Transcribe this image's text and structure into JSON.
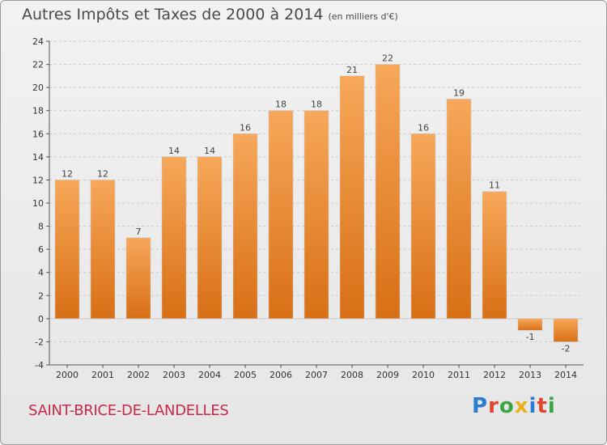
{
  "header": {
    "title": "Autres Impôts et Taxes de 2000 à 2014",
    "unit": "(en milliers d'€)"
  },
  "footer": {
    "commune": "SAINT-BRICE-DE-LANDELLES",
    "logo": "Proxiti"
  },
  "colors": {
    "bar_top": "#f7a85a",
    "bar_bottom": "#d86f15",
    "commune": "#c8284a",
    "logo_letters": [
      "#2a7dd1",
      "#e0462e",
      "#3aa541",
      "#e8b21c",
      "#2a7dd1",
      "#e0462e",
      "#3aa541"
    ]
  },
  "chart_data": {
    "type": "bar",
    "title": "Autres Impôts et Taxes de 2000 à 2014",
    "xlabel": "",
    "ylabel": "",
    "categories": [
      "2000",
      "2001",
      "2002",
      "2003",
      "2004",
      "2005",
      "2006",
      "2007",
      "2008",
      "2009",
      "2010",
      "2011",
      "2012",
      "2013",
      "2014"
    ],
    "values": [
      12,
      12,
      7,
      14,
      14,
      16,
      18,
      18,
      21,
      22,
      16,
      19,
      11,
      -1,
      -2
    ],
    "ylim": [
      -4,
      24
    ],
    "yticks": [
      -4,
      -2,
      0,
      2,
      4,
      6,
      8,
      10,
      12,
      14,
      16,
      18,
      20,
      22,
      24
    ],
    "grid": true
  }
}
